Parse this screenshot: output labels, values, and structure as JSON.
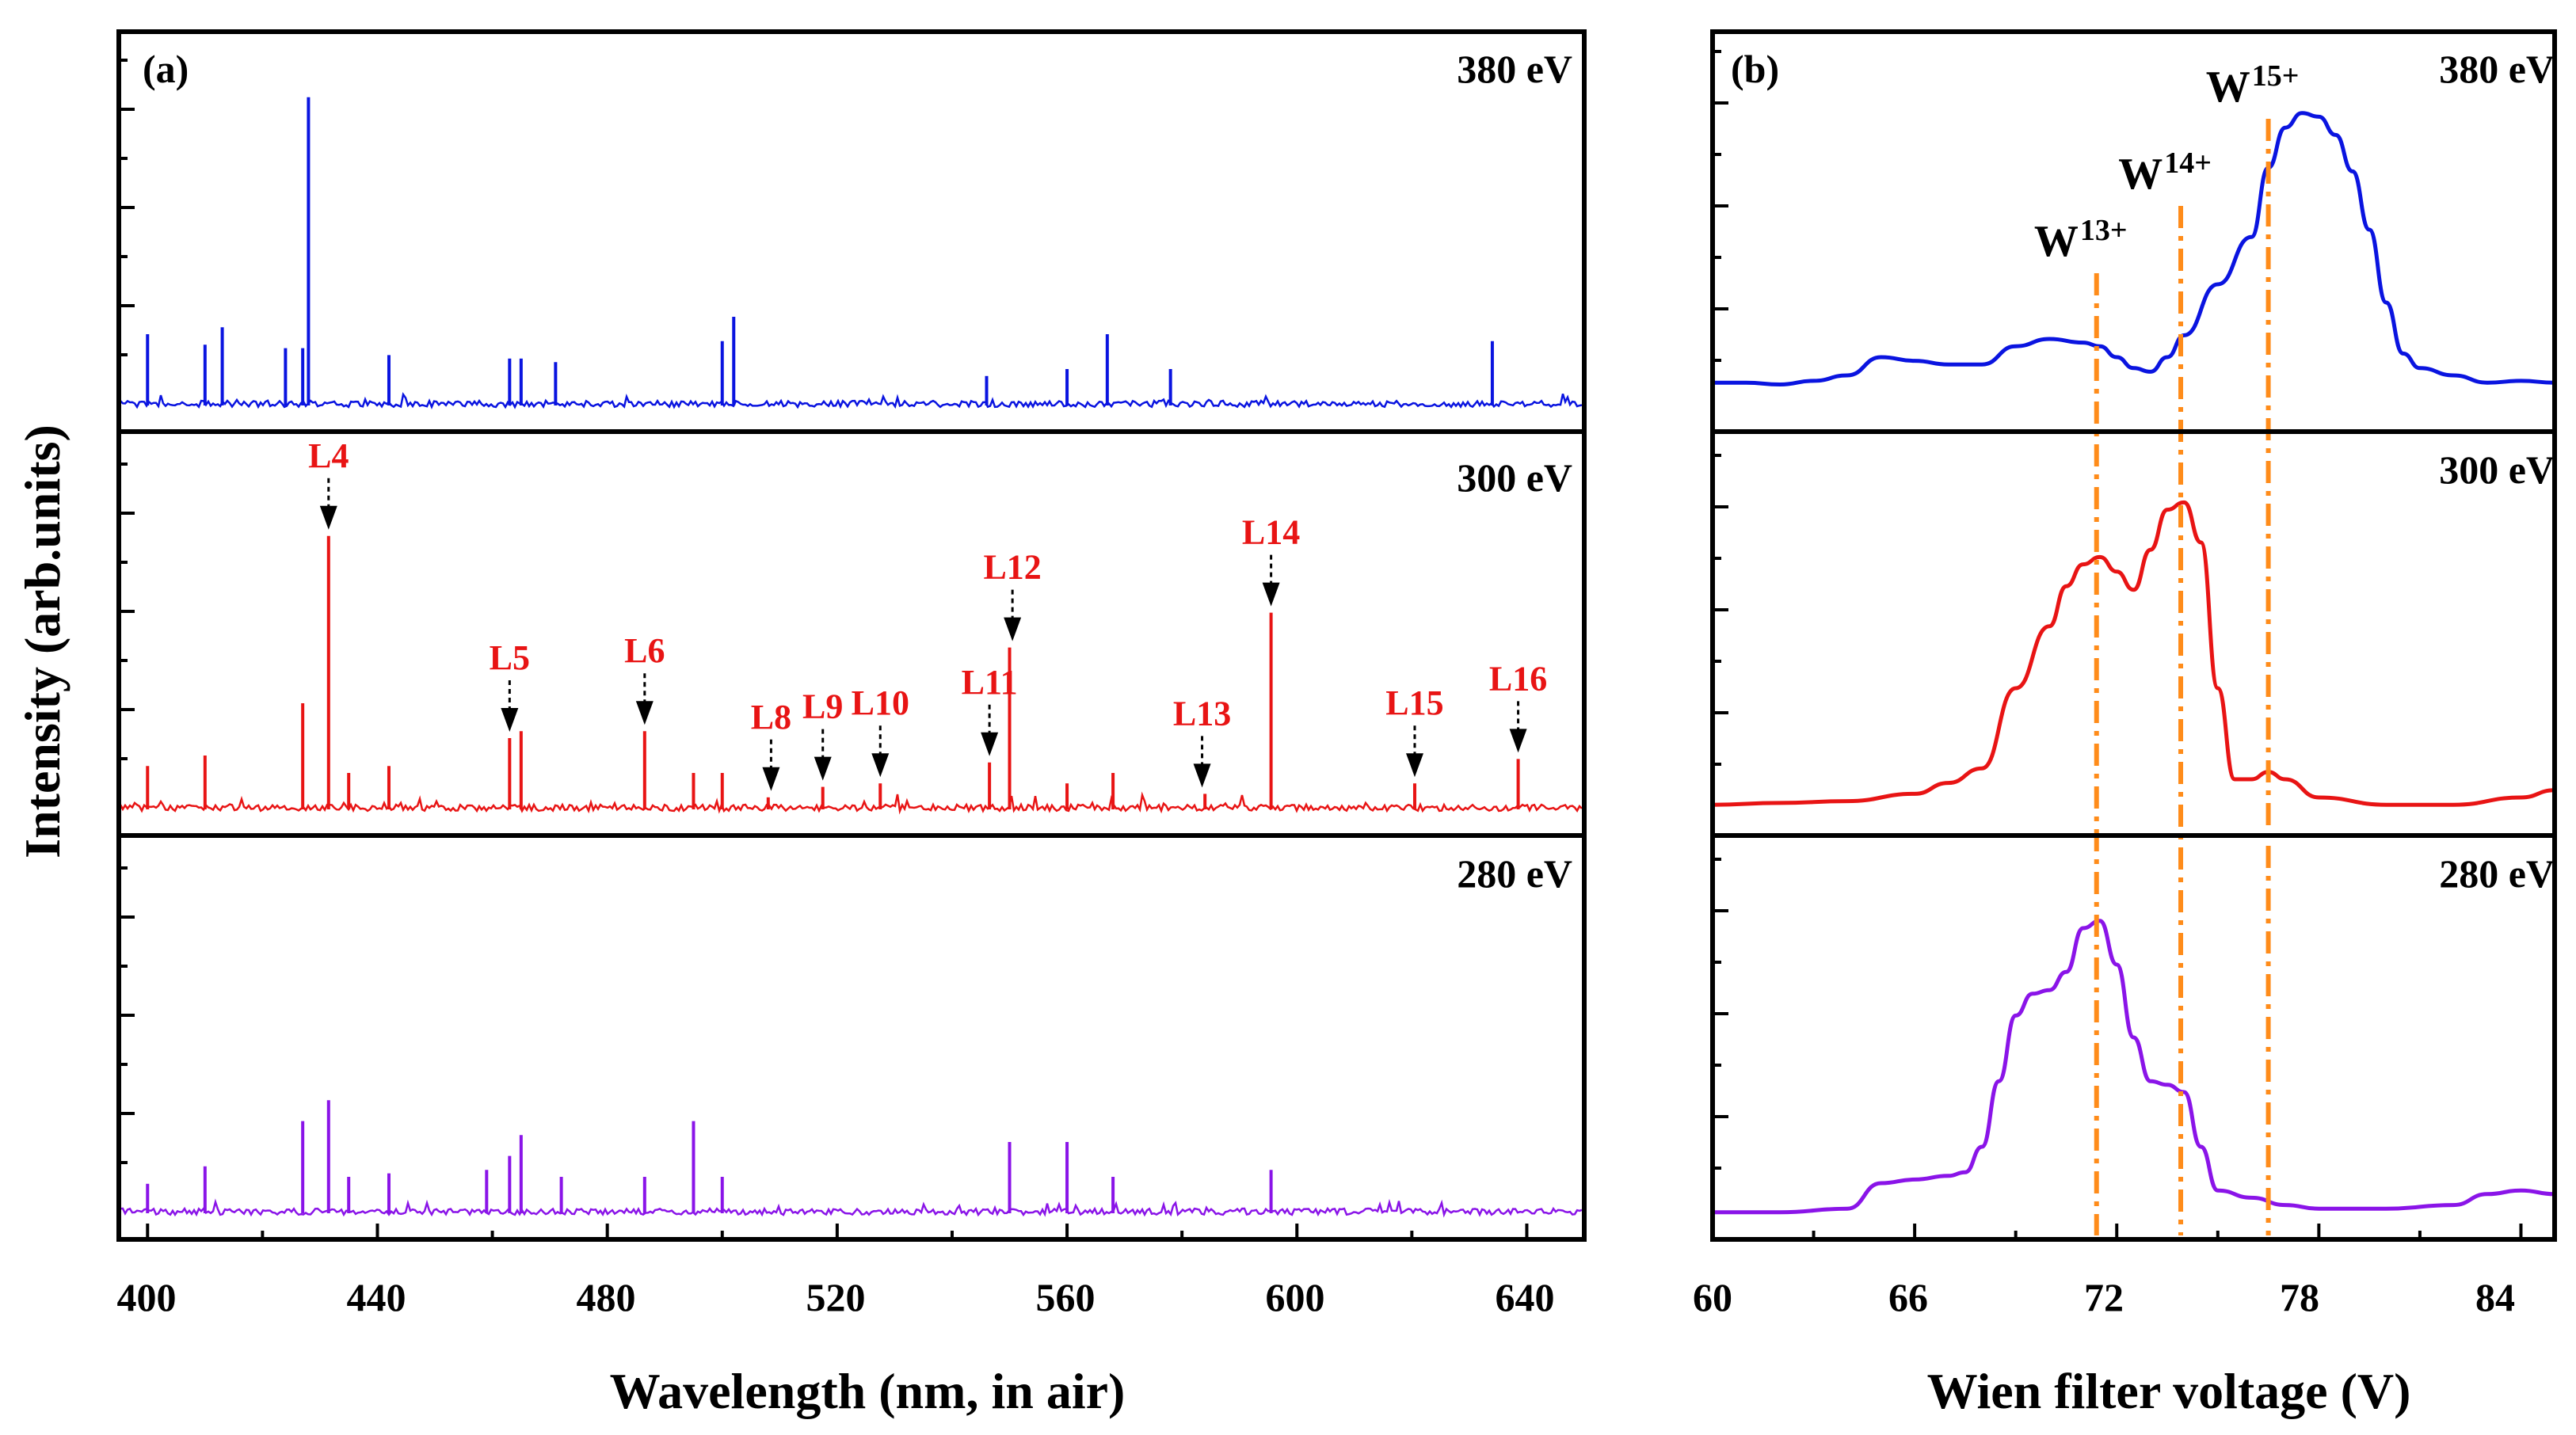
{
  "chart_data": [
    {
      "panel": "(a)",
      "type": "line",
      "xlabel": "Wavelength (nm, in air)",
      "ylabel": "Intensity (arb.units)",
      "xlim": [
        395,
        650
      ],
      "xticks": [
        "400",
        "440",
        "480",
        "520",
        "560",
        "600",
        "640"
      ],
      "ylim": [
        0,
        1
      ],
      "series": [
        {
          "name": "380 eV",
          "color": "#0a14e0",
          "lines": [
            [
              400,
              0.2
            ],
            [
              410,
              0.17
            ],
            [
              413,
              0.22
            ],
            [
              424,
              0.16
            ],
            [
              427,
              0.16
            ],
            [
              428,
              0.88
            ],
            [
              442,
              0.14
            ],
            [
              463,
              0.13
            ],
            [
              465,
              0.13
            ],
            [
              471,
              0.12
            ],
            [
              500,
              0.18
            ],
            [
              502,
              0.25
            ],
            [
              546,
              0.08
            ],
            [
              560,
              0.1
            ],
            [
              567,
              0.2
            ],
            [
              578,
              0.1
            ],
            [
              634,
              0.18
            ]
          ]
        },
        {
          "name": "300 eV",
          "color": "#e81414",
          "lines": [
            [
              400,
              0.12
            ],
            [
              410,
              0.15
            ],
            [
              427,
              0.3
            ],
            [
              431.5,
              0.78
            ],
            [
              435,
              0.1
            ],
            [
              442,
              0.12
            ],
            [
              463,
              0.2
            ],
            [
              465,
              0.22
            ],
            [
              486.5,
              0.22
            ],
            [
              495,
              0.1
            ],
            [
              500,
              0.1
            ],
            [
              508,
              0.03
            ],
            [
              517.5,
              0.06
            ],
            [
              527.5,
              0.07
            ],
            [
              546.5,
              0.13
            ],
            [
              550,
              0.46
            ],
            [
              560,
              0.07
            ],
            [
              568,
              0.1
            ],
            [
              584,
              0.04
            ],
            [
              595.5,
              0.56
            ],
            [
              620.5,
              0.07
            ],
            [
              638.5,
              0.14
            ]
          ]
        },
        {
          "name": "280 eV",
          "color": "#8a14e8",
          "lines": [
            [
              400,
              0.08
            ],
            [
              410,
              0.13
            ],
            [
              427,
              0.26
            ],
            [
              431.5,
              0.32
            ],
            [
              435,
              0.1
            ],
            [
              442,
              0.11
            ],
            [
              459,
              0.12
            ],
            [
              463,
              0.16
            ],
            [
              465,
              0.22
            ],
            [
              472,
              0.1
            ],
            [
              486.5,
              0.1
            ],
            [
              495,
              0.26
            ],
            [
              500,
              0.1
            ],
            [
              550,
              0.2
            ],
            [
              560,
              0.2
            ],
            [
              568,
              0.1
            ],
            [
              595.5,
              0.12
            ]
          ]
        }
      ],
      "annotations": [
        {
          "label": "L4",
          "x": 431.5
        },
        {
          "label": "L5",
          "x": 463
        },
        {
          "label": "L6",
          "x": 486.5
        },
        {
          "label": "L8",
          "x": 508.5
        },
        {
          "label": "L9",
          "x": 517.5
        },
        {
          "label": "L10",
          "x": 527.5
        },
        {
          "label": "L11",
          "x": 546.5
        },
        {
          "label": "L12",
          "x": 550.5
        },
        {
          "label": "L13",
          "x": 583.5
        },
        {
          "label": "L14",
          "x": 595.5
        },
        {
          "label": "L15",
          "x": 620.5
        },
        {
          "label": "L16",
          "x": 638.5
        }
      ]
    },
    {
      "panel": "(b)",
      "type": "line",
      "xlabel": "Wien filter voltage (V)",
      "xlim": [
        60,
        85
      ],
      "xticks": [
        "60",
        "66",
        "72",
        "78",
        "84"
      ],
      "ylim": [
        0,
        1
      ],
      "series": [
        {
          "name": "380 eV",
          "color": "#0a14e0",
          "points": [
            [
              60,
              0.08
            ],
            [
              61,
              0.08
            ],
            [
              62,
              0.075
            ],
            [
              63,
              0.085
            ],
            [
              64,
              0.1
            ],
            [
              65,
              0.15
            ],
            [
              66,
              0.14
            ],
            [
              67,
              0.13
            ],
            [
              68,
              0.13
            ],
            [
              69,
              0.18
            ],
            [
              70,
              0.2
            ],
            [
              71,
              0.19
            ],
            [
              71.5,
              0.18
            ],
            [
              72,
              0.15
            ],
            [
              72.5,
              0.12
            ],
            [
              73,
              0.11
            ],
            [
              73.5,
              0.15
            ],
            [
              74,
              0.21
            ],
            [
              75,
              0.35
            ],
            [
              76,
              0.48
            ],
            [
              76.5,
              0.67
            ],
            [
              77,
              0.78
            ],
            [
              77.5,
              0.82
            ],
            [
              78,
              0.81
            ],
            [
              78.5,
              0.76
            ],
            [
              79,
              0.66
            ],
            [
              79.5,
              0.5
            ],
            [
              80,
              0.3
            ],
            [
              80.5,
              0.16
            ],
            [
              81,
              0.12
            ],
            [
              82,
              0.1
            ],
            [
              83,
              0.08
            ],
            [
              84,
              0.085
            ],
            [
              85,
              0.08
            ]
          ]
        },
        {
          "name": "300 eV",
          "color": "#e81414",
          "points": [
            [
              60,
              0.03
            ],
            [
              62,
              0.035
            ],
            [
              64,
              0.04
            ],
            [
              66,
              0.06
            ],
            [
              67,
              0.09
            ],
            [
              68,
              0.13
            ],
            [
              69,
              0.35
            ],
            [
              70,
              0.52
            ],
            [
              70.5,
              0.63
            ],
            [
              71,
              0.69
            ],
            [
              71.5,
              0.71
            ],
            [
              72,
              0.67
            ],
            [
              72.5,
              0.62
            ],
            [
              73,
              0.73
            ],
            [
              73.5,
              0.84
            ],
            [
              74,
              0.86
            ],
            [
              74.5,
              0.75
            ],
            [
              75,
              0.35
            ],
            [
              75.5,
              0.1
            ],
            [
              76,
              0.1
            ],
            [
              76.5,
              0.12
            ],
            [
              77,
              0.1
            ],
            [
              78,
              0.05
            ],
            [
              80,
              0.03
            ],
            [
              82,
              0.03
            ],
            [
              84,
              0.05
            ],
            [
              85,
              0.07
            ]
          ]
        },
        {
          "name": "280 eV",
          "color": "#8a14e8",
          "points": [
            [
              60,
              0.02
            ],
            [
              62,
              0.02
            ],
            [
              64,
              0.03
            ],
            [
              65,
              0.1
            ],
            [
              66,
              0.11
            ],
            [
              67,
              0.12
            ],
            [
              67.5,
              0.13
            ],
            [
              68,
              0.2
            ],
            [
              68.5,
              0.38
            ],
            [
              69,
              0.56
            ],
            [
              69.5,
              0.62
            ],
            [
              70,
              0.63
            ],
            [
              70.5,
              0.68
            ],
            [
              71,
              0.8
            ],
            [
              71.5,
              0.82
            ],
            [
              72,
              0.7
            ],
            [
              72.5,
              0.5
            ],
            [
              73,
              0.38
            ],
            [
              73.5,
              0.37
            ],
            [
              74,
              0.35
            ],
            [
              74.5,
              0.2
            ],
            [
              75,
              0.08
            ],
            [
              76,
              0.06
            ],
            [
              77,
              0.04
            ],
            [
              78,
              0.03
            ],
            [
              80,
              0.03
            ],
            [
              82,
              0.04
            ],
            [
              83,
              0.07
            ],
            [
              84,
              0.08
            ],
            [
              85,
              0.07
            ]
          ]
        }
      ],
      "markers": [
        {
          "label": "W",
          "charge": "13+",
          "x": 71.4
        },
        {
          "label": "W",
          "charge": "14+",
          "x": 73.9
        },
        {
          "label": "W",
          "charge": "15+",
          "x": 76.5
        }
      ]
    }
  ],
  "marker_color": "#ff8c1a",
  "annotation_color": "#e81414"
}
